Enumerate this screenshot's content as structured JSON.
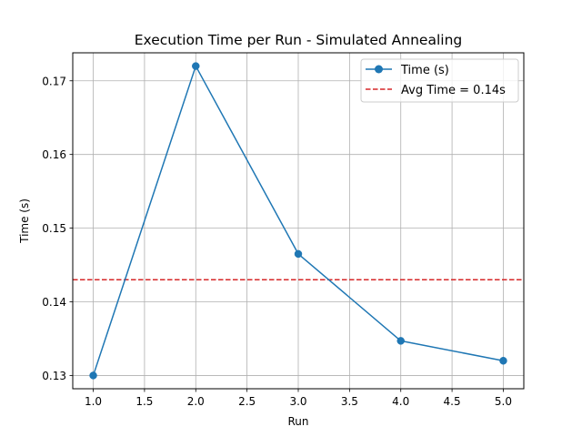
{
  "chart_data": {
    "type": "line",
    "title": "Execution Time per Run - Simulated Annealing",
    "xlabel": "Run",
    "ylabel": "Time (s)",
    "xlim": [
      0.8,
      5.2
    ],
    "ylim": [
      0.1282,
      0.1738
    ],
    "xticks": [
      1.0,
      1.5,
      2.0,
      2.5,
      3.0,
      3.5,
      4.0,
      4.5,
      5.0
    ],
    "xtick_labels": [
      "1.0",
      "1.5",
      "2.0",
      "2.5",
      "3.0",
      "3.5",
      "4.0",
      "4.5",
      "5.0"
    ],
    "yticks": [
      0.13,
      0.14,
      0.15,
      0.16,
      0.17
    ],
    "ytick_labels": [
      "0.13",
      "0.14",
      "0.15",
      "0.16",
      "0.17"
    ],
    "grid": true,
    "legend_position": "top-right",
    "series": [
      {
        "name": "Time (s)",
        "color": "#1f77b4",
        "marker": "circle",
        "x": [
          1,
          2,
          3,
          4,
          5
        ],
        "y": [
          0.13,
          0.172,
          0.1465,
          0.1347,
          0.132
        ]
      }
    ],
    "hlines": [
      {
        "name": "Avg Time = 0.14s",
        "value": 0.143,
        "color": "#d62728",
        "style": "dashed"
      }
    ]
  }
}
